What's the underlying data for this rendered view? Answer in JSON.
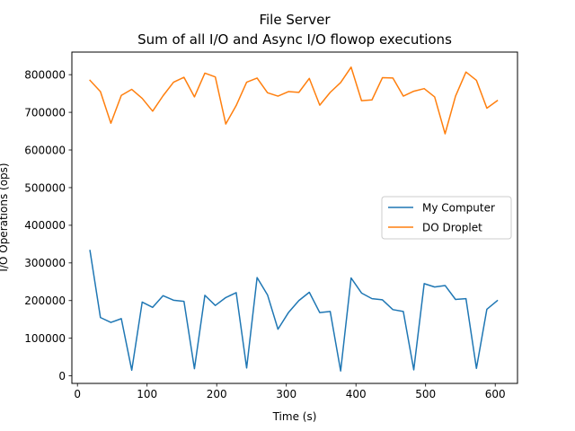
{
  "chart_data": {
    "type": "line",
    "title": "File Server",
    "subtitle": "Sum of all I/O and Async I/O flowop executions",
    "xlabel": "Time (s)",
    "ylabel": "I/O Operations (ops)",
    "xlim": [
      -8,
      632
    ],
    "ylim": [
      -20000,
      860000
    ],
    "xticks": [
      0,
      100,
      200,
      300,
      400,
      500,
      600
    ],
    "yticks": [
      0,
      100000,
      200000,
      300000,
      400000,
      500000,
      600000,
      700000,
      800000
    ],
    "grid": false,
    "legend_position": "center-right",
    "x": [
      18,
      33,
      48,
      63,
      78,
      93,
      108,
      123,
      138,
      153,
      168,
      183,
      198,
      213,
      228,
      243,
      258,
      273,
      288,
      303,
      318,
      333,
      348,
      363,
      378,
      393,
      408,
      423,
      438,
      453,
      468,
      483,
      498,
      513,
      528,
      543,
      558,
      573,
      588,
      603
    ],
    "series": [
      {
        "name": "My Computer",
        "color": "#1f77b4",
        "values": [
          333000,
          155000,
          142000,
          152000,
          15000,
          196000,
          182000,
          213000,
          201000,
          198000,
          19000,
          214000,
          187000,
          208000,
          221000,
          21000,
          261000,
          215000,
          124000,
          168000,
          200000,
          222000,
          168000,
          171000,
          13000,
          260000,
          220000,
          205000,
          202000,
          176000,
          171000,
          16000,
          245000,
          236000,
          240000,
          203000,
          205000,
          20000,
          177000,
          200000
        ]
      },
      {
        "name": "DO Droplet",
        "color": "#ff7f0e",
        "values": [
          785000,
          755000,
          671000,
          745000,
          761000,
          737000,
          703000,
          744000,
          780000,
          793000,
          741000,
          804000,
          794000,
          669000,
          718000,
          780000,
          791000,
          752000,
          743000,
          755000,
          753000,
          790000,
          719000,
          753000,
          779000,
          820000,
          731000,
          733000,
          792000,
          791000,
          743000,
          756000,
          763000,
          741000,
          643000,
          743000,
          807000,
          785000,
          711000,
          731000
        ]
      }
    ]
  }
}
